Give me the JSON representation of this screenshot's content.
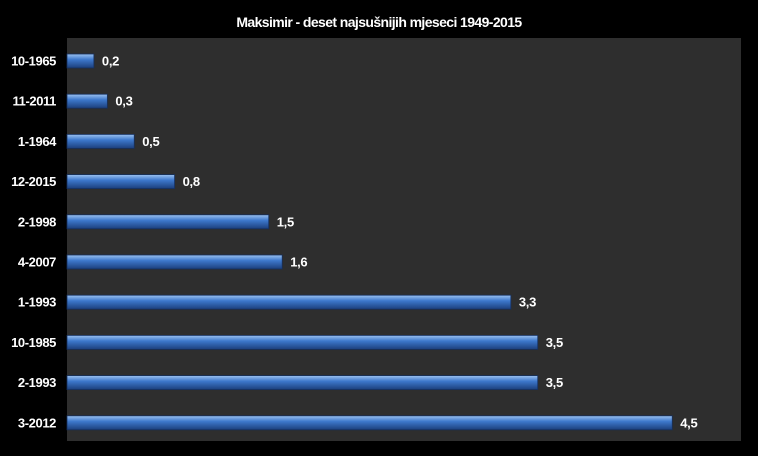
{
  "chart_data": {
    "type": "bar",
    "orientation": "horizontal",
    "title": "Maksimir - deset najsušnijih mjeseci 1949-2015",
    "categories": [
      "10-1965",
      "11-2011",
      "1-1964",
      "12-2015",
      "2-1998",
      "4-2007",
      "1-1993",
      "10-1985",
      "2-1993",
      "3-2012"
    ],
    "values": [
      0.2,
      0.3,
      0.5,
      0.8,
      1.5,
      1.6,
      3.3,
      3.5,
      3.5,
      4.5
    ],
    "value_labels": [
      "0,2",
      "0,3",
      "0,5",
      "0,8",
      "1,5",
      "1,6",
      "3,3",
      "3,5",
      "3,5",
      "4,5"
    ],
    "xlim": [
      0,
      5
    ],
    "grid": false,
    "legend": "none",
    "colors": {
      "page_background": "#000000",
      "plot_background": "#2e2e2e",
      "bar_top": "#9cc2f0",
      "bar_mid": "#3d78cc",
      "bar_bottom": "#1c3f7c",
      "bar_stroke": "#16305e",
      "text": "#ffffff"
    }
  }
}
